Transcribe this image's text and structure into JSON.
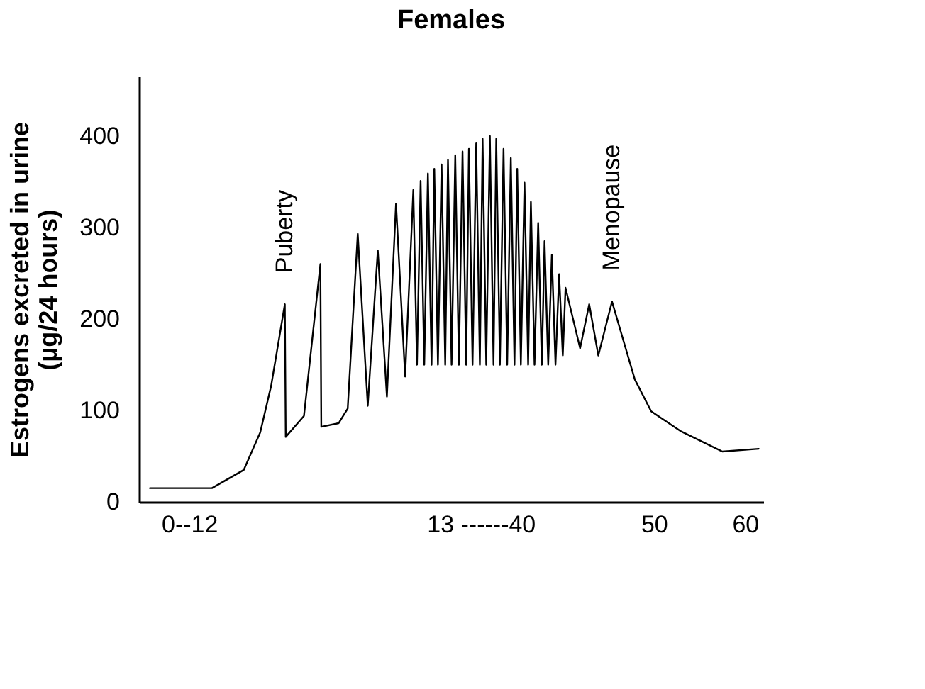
{
  "chart_data": {
    "type": "line",
    "title": "Females",
    "ylabel": "Estrogens excreted in urine\n(µg/24 hours)",
    "x": [
      -5.3,
      1.5,
      5.0,
      6.8,
      8.0,
      9.5,
      9.6,
      11.6,
      13.4,
      13.5,
      15.4,
      16.4,
      17.5,
      18.6,
      19.7,
      20.7,
      21.7,
      22.7,
      23.6,
      24.0,
      24.4,
      24.8,
      25.2,
      25.6,
      25.9,
      26.3,
      26.7,
      27.1,
      27.4,
      27.8,
      28.2,
      28.6,
      29.0,
      29.4,
      29.7,
      30.1,
      30.5,
      30.9,
      31.2,
      31.6,
      32.0,
      32.4,
      32.7,
      33.1,
      33.5,
      33.9,
      34.3,
      34.7,
      35.0,
      35.4,
      35.8,
      36.2,
      36.5,
      36.9,
      37.3,
      37.7,
      38.0,
      38.4,
      38.8,
      39.2,
      39.6,
      40.0,
      40.3,
      41.9,
      42.9,
      43.9,
      45.4,
      46.9,
      47.9,
      49.7,
      53.0,
      57.5,
      61.5
    ],
    "series": [
      {
        "color": "#000000",
        "values": [
          15,
          15,
          35,
          76,
          127,
          216,
          71,
          94,
          260,
          82,
          86,
          102,
          293,
          105,
          275,
          115,
          326,
          137,
          341,
          150,
          351,
          150,
          359,
          150,
          364,
          150,
          369,
          150,
          374,
          150,
          379,
          150,
          383,
          150,
          386,
          150,
          392,
          150,
          397,
          150,
          400,
          150,
          397,
          150,
          386,
          150,
          376,
          150,
          364,
          150,
          349,
          150,
          328,
          150,
          305,
          150,
          285,
          150,
          270,
          150,
          249,
          160,
          234,
          168,
          216,
          160,
          219,
          168,
          134,
          99,
          77,
          55,
          58
        ]
      }
    ],
    "xlim": [
      -6.5,
      62
    ],
    "xticks": [
      {
        "value": -1,
        "label": "0--12"
      },
      {
        "value": 31,
        "label": "13 ------40"
      },
      50,
      60
    ],
    "ylim": [
      0,
      465
    ],
    "yticks": [
      0,
      100,
      200,
      300,
      400
    ],
    "grid": false,
    "line_style": "solid",
    "marker": "none",
    "annotations": [
      {
        "text": "Puberty",
        "x": 9.5,
        "y": 216
      },
      {
        "text": "Menopause",
        "x": 45.4,
        "y": 219
      }
    ]
  }
}
